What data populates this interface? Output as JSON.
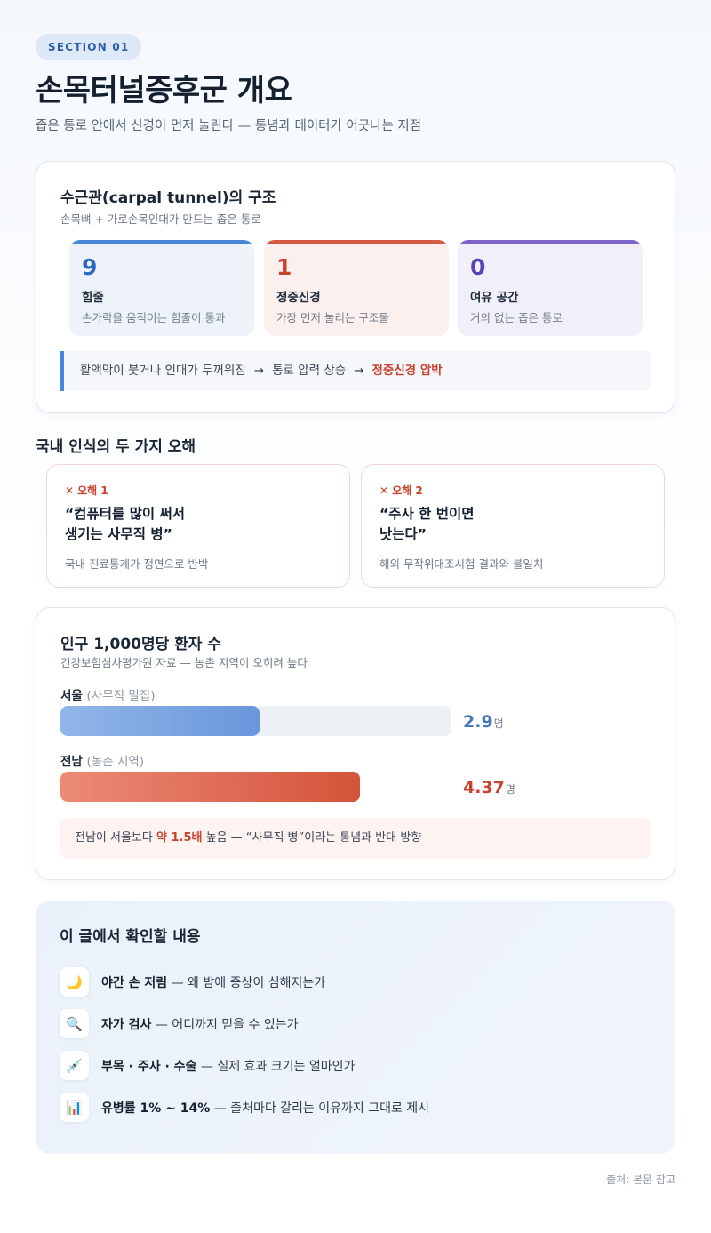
{
  "header": {
    "section_tag": "SECTION 01",
    "title": "손목터널증후군 개요",
    "subtitle": "좁은 통로 안에서 신경이 먼저 눌린다 — 통념과 데이터가 어긋나는 지점"
  },
  "structure": {
    "title": "수근관(carpal tunnel)의 구조",
    "subtitle": "손목뼈 + 가로손목인대가 만드는 좁은 통로",
    "stats": [
      {
        "value": "9",
        "label": "힘줄",
        "desc": "손가락을 움직이는 힘줄이 통과"
      },
      {
        "value": "1",
        "label": "정중신경",
        "desc": "가장 먼저 눌리는 구조물"
      },
      {
        "value": "0",
        "label": "여유 공간",
        "desc": "거의 없는 좁은 통로"
      }
    ],
    "flow": {
      "step1": "활액막이 붓거나 인대가 두꺼워짐",
      "step2": "통로 압력 상승",
      "step3": "정중신경 압박",
      "arrow": "→"
    }
  },
  "misconceptions": {
    "heading": "국내 인식의 두 가지 오해",
    "items": [
      {
        "tag": "오해 1",
        "quote_line1": "“컴퓨터를 많이 써서",
        "quote_line2": "생기는 사무직 병”",
        "note": "국내 진료통계가 정면으로 반박"
      },
      {
        "tag": "오해 2",
        "quote_line1": "“주사 한 번이면",
        "quote_line2": "낫는다”",
        "note": "해외 무작위대조시험 결과와 불일치"
      }
    ],
    "x_mark": "✕"
  },
  "patients": {
    "title": "인구 1,000명당 환자 수",
    "subtitle": "건강보험심사평가원 자료 — 농촌 지역이 오히려 높다",
    "bar_max": 5.7,
    "regions": [
      {
        "name": "서울",
        "note": "(사무직 밀집)",
        "value": 2.9,
        "value_text": "2.9",
        "unit": "명",
        "color": "#6897dc"
      },
      {
        "name": "전남",
        "note": "(농촌 지역)",
        "value": 4.37,
        "value_text": "4.37",
        "unit": "명",
        "color": "#d4533a"
      }
    ],
    "compare": {
      "before": "전남이 서울보다",
      "highlight": "약 1.5배",
      "after": "높음 — “사무직 병”이라는 통념과 반대 방향"
    }
  },
  "checklist": {
    "title": "이 글에서 확인할 내용",
    "items": [
      {
        "icon": "moon-icon",
        "glyph": "🌙",
        "bold": "야간 손 저림",
        "rest": "— 왜 밤에 증상이 심해지는가"
      },
      {
        "icon": "magnifier-icon",
        "glyph": "🔍",
        "bold": "자가 검사",
        "rest": "— 어디까지 믿을 수 있는가"
      },
      {
        "icon": "syringe-icon",
        "glyph": "💉",
        "bold": "부목 · 주사 · 수술",
        "rest": "— 실제 효과 크기는 얼마인가"
      },
      {
        "icon": "bar-chart-icon",
        "glyph": "📊",
        "bold": "유병률 1% ~ 14%",
        "rest": "— 출처마다 갈리는 이유까지 그대로 제시"
      }
    ]
  },
  "source": "출처: 본문 참고",
  "colors": {
    "accent_blue": "#4a86d8",
    "accent_red": "#c8432f",
    "accent_purple": "#7b65c9"
  }
}
